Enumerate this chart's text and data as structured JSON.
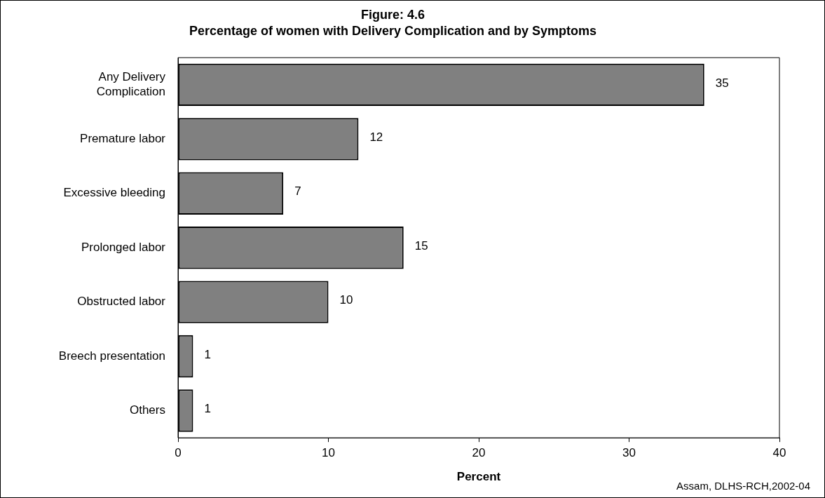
{
  "chart_data": {
    "type": "bar",
    "orientation": "horizontal",
    "title": "Figure: 4.6",
    "subtitle": "Percentage of women with Delivery Complication and by Symptoms",
    "categories": [
      "Any Delivery Complication",
      "Premature labor",
      "Excessive bleeding",
      "Prolonged labor",
      "Obstructed labor",
      "Breech presentation",
      "Others"
    ],
    "values": [
      35,
      12,
      7,
      15,
      10,
      1,
      1
    ],
    "color": "#808080",
    "xlim": [
      0,
      40
    ],
    "xticks": [
      0,
      10,
      20,
      30,
      40
    ],
    "xlabel": "Percent",
    "grid": false,
    "legend": false,
    "data_labels": true,
    "annotations": [
      "Assam, DLHS-RCH,2002-04"
    ]
  }
}
